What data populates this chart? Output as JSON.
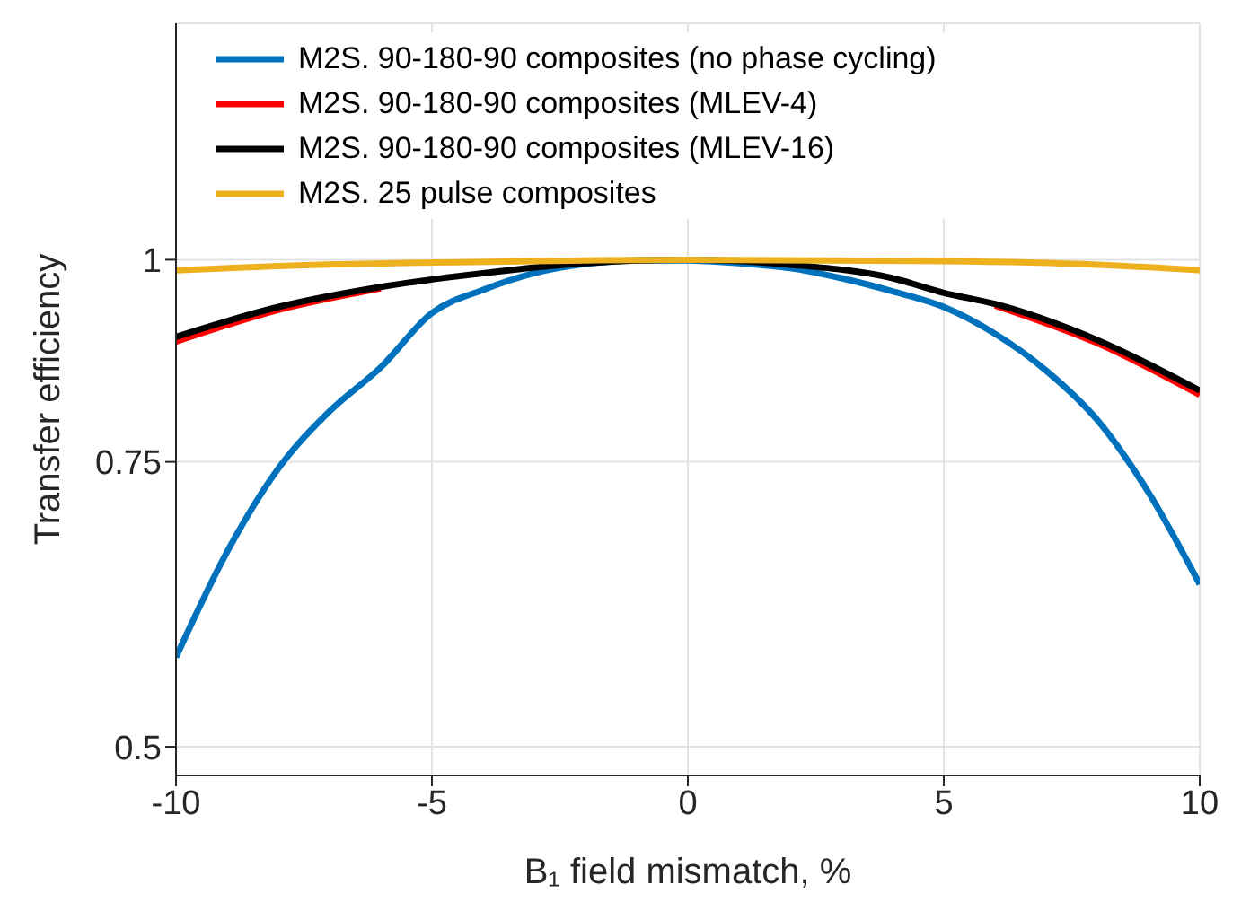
{
  "chart_data": {
    "type": "line",
    "xlabel": "B₁ field mismatch, %",
    "ylabel": "Transfer efficiency",
    "xlim": [
      -10,
      10
    ],
    "xticks": [
      -10,
      -5,
      0,
      5,
      10
    ],
    "ylim": [
      0.48,
      1.4
    ],
    "yticks": [
      0.5,
      0.75,
      1
    ],
    "log": true,
    "grid": true,
    "legend": "top",
    "marker": "none",
    "line_style": "solid",
    "series": [
      {
        "name": "M2S. 90-180-90 composites (no phase cycling)",
        "color": "#0072bd",
        "x": [
          -10,
          -9,
          -8,
          -7,
          -6,
          -5,
          -4,
          -3,
          -2,
          -1,
          0,
          1,
          2,
          3,
          4,
          5,
          6,
          7,
          8,
          9,
          10
        ],
        "values": [
          0.568,
          0.66,
          0.743,
          0.806,
          0.858,
          0.927,
          0.958,
          0.981,
          0.994,
          0.999,
          0.999,
          0.995,
          0.988,
          0.974,
          0.956,
          0.935,
          0.9,
          0.854,
          0.796,
          0.718,
          0.63
        ]
      },
      {
        "name": "M2S. 90-180-90 composites (MLEV-4)",
        "color": "#ff0000",
        "x": [
          -10,
          -8,
          -6,
          0,
          6,
          8,
          10
        ],
        "values": [
          0.89,
          0.931,
          0.96,
          null,
          0.937,
          0.888,
          0.825
        ]
      },
      {
        "name": "M2S. 90-180-90 composites (MLEV-16)",
        "color": "#000000",
        "x": [
          -10,
          -8,
          -6,
          -4,
          -2,
          -1,
          0,
          2,
          4,
          5,
          6,
          8,
          10
        ],
        "values": [
          0.896,
          0.935,
          0.962,
          0.981,
          0.995,
          0.999,
          1.0,
          0.993,
          0.974,
          0.954,
          0.939,
          0.892,
          0.83
        ]
      },
      {
        "name": "M2S. 25 pulse composites",
        "color": "#edb120",
        "x": [
          -10,
          -8,
          -5,
          -2,
          0,
          5,
          8,
          10
        ],
        "values": [
          0.985,
          0.991,
          0.996,
          0.999,
          1.0,
          0.998,
          0.993,
          0.985
        ]
      }
    ]
  }
}
